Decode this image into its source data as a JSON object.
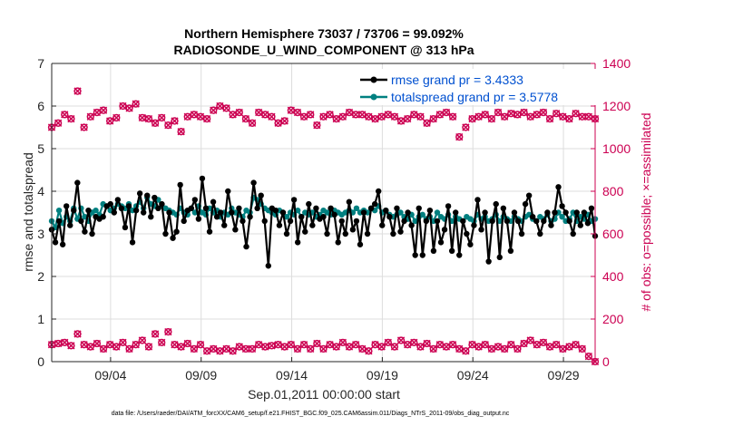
{
  "chart_data": {
    "type": "line",
    "title_line1": "Northern Hemisphere 73037 / 73706 = 99.092%",
    "title_line2": "RADIOSONDE_U_WIND_COMPONENT @ 313 hPa",
    "xlabel": "Sep.01,2011 00:00:00 start",
    "ylabel_left": "rmse and totalspread",
    "ylabel_right": "# of obs: o=possible; ×=assimilated",
    "footnote": "data file: /Users/raeder/DAI/ATM_forcXX/CAM6_setup/f.e21.FHIST_BGC.f09_025.CAM6assim.011/Diags_NTrS_2011-09/obs_diag_output.nc",
    "x_range": [
      0.75,
      30.75
    ],
    "ylim_left": [
      0,
      7
    ],
    "ylim_right": [
      0,
      1400
    ],
    "xticks": [
      {
        "value": 4,
        "label": "09/04"
      },
      {
        "value": 9,
        "label": "09/09"
      },
      {
        "value": 14,
        "label": "09/14"
      },
      {
        "value": 19,
        "label": "09/19"
      },
      {
        "value": 24,
        "label": "09/24"
      },
      {
        "value": 29,
        "label": "09/29"
      }
    ],
    "yticks_left": [
      "0",
      "1",
      "2",
      "3",
      "4",
      "5",
      "6",
      "7"
    ],
    "yticks_right": [
      "0",
      "200",
      "400",
      "600",
      "800",
      "1000",
      "1200",
      "1400"
    ],
    "colors": {
      "rmse": "#000000",
      "spread": "#008080",
      "obs": "#cc0052",
      "legend_text": "#0050d0"
    },
    "legend": [
      {
        "key": "rmse",
        "label": "rmse grand pr = 3.4333"
      },
      {
        "key": "spread",
        "label": "totalspread grand pr = 3.5778"
      }
    ],
    "series": [
      {
        "name": "rmse",
        "axis": "left",
        "values": [
          3.1,
          2.8,
          3.3,
          2.75,
          3.65,
          3.2,
          3.55,
          4.2,
          3.3,
          3.05,
          3.55,
          3.0,
          3.4,
          3.35,
          3.4,
          3.65,
          3.7,
          3.5,
          3.8,
          3.6,
          3.15,
          3.65,
          2.8,
          3.55,
          3.95,
          3.5,
          3.9,
          3.4,
          3.85,
          3.6,
          3.7,
          3.0,
          3.5,
          2.9,
          3.05,
          4.15,
          3.3,
          3.55,
          3.6,
          3.8,
          3.35,
          4.3,
          3.6,
          3.05,
          3.75,
          3.4,
          3.5,
          3.2,
          4.0,
          3.5,
          3.1,
          3.6,
          3.3,
          2.7,
          3.4,
          4.2,
          3.6,
          3.9,
          3.3,
          2.25,
          3.6,
          3.55,
          3.2,
          3.5,
          3.0,
          3.3,
          3.8,
          2.8,
          3.4,
          3.05,
          3.7,
          3.2,
          3.6,
          3.35,
          3.4,
          3.0,
          3.6,
          3.45,
          2.8,
          3.3,
          3.0,
          3.75,
          3.1,
          3.3,
          2.75,
          3.5,
          3.0,
          3.6,
          3.7,
          4.0,
          3.2,
          3.55,
          3.4,
          3.0,
          3.6,
          3.05,
          3.3,
          3.5,
          3.2,
          2.5,
          3.6,
          2.5,
          3.3,
          3.55,
          2.6,
          3.3,
          2.8,
          3.1,
          3.65,
          2.6,
          3.5,
          2.5,
          3.3,
          3.0,
          2.75,
          3.2,
          3.8,
          3.1,
          3.5,
          2.35,
          3.3,
          3.7,
          2.45,
          3.6,
          3.3,
          2.6,
          3.5,
          3.3,
          3.0,
          3.7,
          3.9,
          3.4,
          3.3,
          3.0,
          3.3,
          3.5,
          3.2,
          3.5,
          4.1,
          3.65,
          3.5,
          3.3,
          3.0,
          3.5,
          3.2,
          3.5,
          3.25,
          3.6,
          2.95
        ]
      },
      {
        "name": "totalspread",
        "axis": "left",
        "values": [
          3.3,
          3.15,
          3.55,
          3.25,
          3.4,
          3.3,
          3.6,
          3.35,
          3.6,
          3.4,
          3.3,
          3.5,
          3.55,
          3.45,
          3.7,
          3.65,
          3.55,
          3.6,
          3.7,
          3.65,
          3.6,
          3.7,
          3.55,
          3.65,
          3.75,
          3.6,
          3.85,
          3.7,
          3.65,
          3.8,
          3.65,
          3.6,
          3.55,
          3.5,
          3.45,
          3.6,
          3.5,
          3.45,
          3.6,
          3.5,
          3.65,
          3.5,
          3.45,
          3.6,
          3.5,
          3.55,
          3.4,
          3.5,
          3.45,
          3.6,
          3.5,
          3.45,
          3.4,
          3.55,
          3.5,
          3.85,
          3.8,
          3.7,
          3.6,
          3.55,
          3.5,
          3.45,
          3.55,
          3.5,
          3.4,
          3.5,
          3.45,
          3.55,
          3.4,
          3.5,
          3.45,
          3.5,
          3.4,
          3.45,
          3.55,
          3.5,
          3.45,
          3.55,
          3.5,
          3.45,
          3.5,
          3.55,
          3.5,
          3.6,
          3.5,
          3.55,
          3.5,
          3.6,
          3.55,
          3.65,
          3.5,
          3.55,
          3.45,
          3.4,
          3.45,
          3.5,
          3.4,
          3.35,
          3.45,
          3.3,
          3.4,
          3.45,
          3.35,
          3.4,
          3.3,
          3.5,
          3.4,
          3.35,
          3.45,
          3.3,
          3.4,
          3.35,
          3.3,
          3.4,
          3.35,
          3.3,
          3.45,
          3.35,
          3.4,
          3.3,
          3.35,
          3.45,
          3.3,
          3.4,
          3.35,
          3.3,
          3.4,
          3.35,
          3.3,
          3.4,
          3.45,
          3.35,
          3.3,
          3.4,
          3.35,
          3.45,
          3.3,
          3.35,
          3.5,
          3.4,
          3.3,
          3.35,
          3.5,
          3.3,
          3.4,
          3.35,
          3.45,
          3.3,
          3.35
        ]
      },
      {
        "name": "obs_possible",
        "axis": "right",
        "values": [
          1100,
          1120,
          1160,
          1140,
          1270,
          1100,
          1150,
          1170,
          1180,
          1130,
          1145,
          1200,
          1190,
          1210,
          1145,
          1140,
          1120,
          1145,
          1110,
          1130,
          1080,
          1150,
          1160,
          1150,
          1140,
          1180,
          1200,
          1190,
          1160,
          1170,
          1140,
          1120,
          1170,
          1160,
          1150,
          1120,
          1130,
          1180,
          1170,
          1150,
          1160,
          1110,
          1150,
          1160,
          1140,
          1150,
          1170,
          1160,
          1160,
          1150,
          1140,
          1150,
          1160,
          1150,
          1130,
          1140,
          1160,
          1150,
          1120,
          1140,
          1160,
          1170,
          1150,
          1055,
          1100,
          1140,
          1150,
          1160,
          1140,
          1170,
          1150,
          1165,
          1160,
          1170,
          1150,
          1160,
          1170,
          1140,
          1165,
          1150,
          1140,
          1165,
          1150,
          1150,
          1140
        ]
      },
      {
        "name": "obs_assimilated",
        "axis": "right",
        "values": [
          80,
          85,
          90,
          75,
          130,
          80,
          70,
          85,
          60,
          80,
          70,
          90,
          60,
          80,
          100,
          70,
          130,
          90,
          140,
          80,
          70,
          85,
          60,
          80,
          50,
          60,
          50,
          60,
          50,
          70,
          60,
          60,
          80,
          70,
          75,
          80,
          70,
          80,
          60,
          80,
          60,
          85,
          60,
          80,
          70,
          90,
          70,
          80,
          60,
          50,
          80,
          70,
          90,
          70,
          100,
          80,
          90,
          70,
          85,
          60,
          80,
          70,
          80,
          60,
          50,
          80,
          70,
          80,
          60,
          70,
          60,
          80,
          60,
          85,
          100,
          80,
          90,
          70,
          80,
          60,
          70,
          80,
          60,
          25,
          0
        ]
      }
    ]
  }
}
